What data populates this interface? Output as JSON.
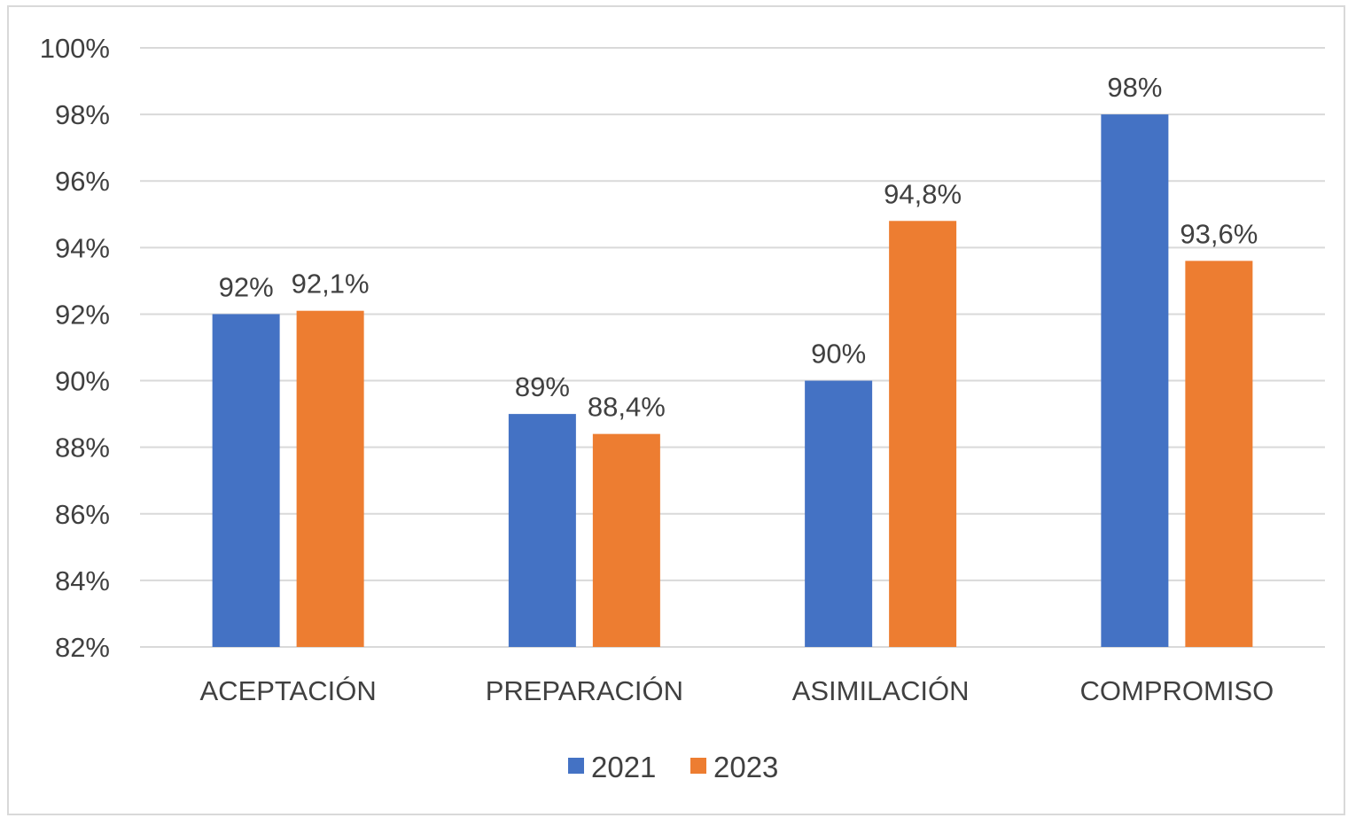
{
  "chart_data": {
    "type": "bar",
    "title": "",
    "xlabel": "",
    "ylabel": "",
    "categories": [
      "ACEPTACIÓN",
      "PREPARACIÓN",
      "ASIMILACIÓN",
      "COMPROMISO"
    ],
    "series": [
      {
        "name": "2021",
        "values": [
          92,
          89,
          90,
          98
        ],
        "labels": [
          "92%",
          "89%",
          "90%",
          "98%"
        ],
        "color": "#4472c4"
      },
      {
        "name": "2023",
        "values": [
          92.1,
          88.4,
          94.8,
          93.6
        ],
        "labels": [
          "92,1%",
          "88,4%",
          "94,8%",
          "93,6%"
        ],
        "color": "#ed7d31"
      }
    ],
    "ylim": [
      82,
      100
    ],
    "yticks": [
      "82%",
      "84%",
      "86%",
      "88%",
      "90%",
      "92%",
      "94%",
      "96%",
      "98%",
      "100%"
    ],
    "grid": true,
    "gridline_color": "#d9d9d9",
    "legend_position": "bottom-center"
  }
}
